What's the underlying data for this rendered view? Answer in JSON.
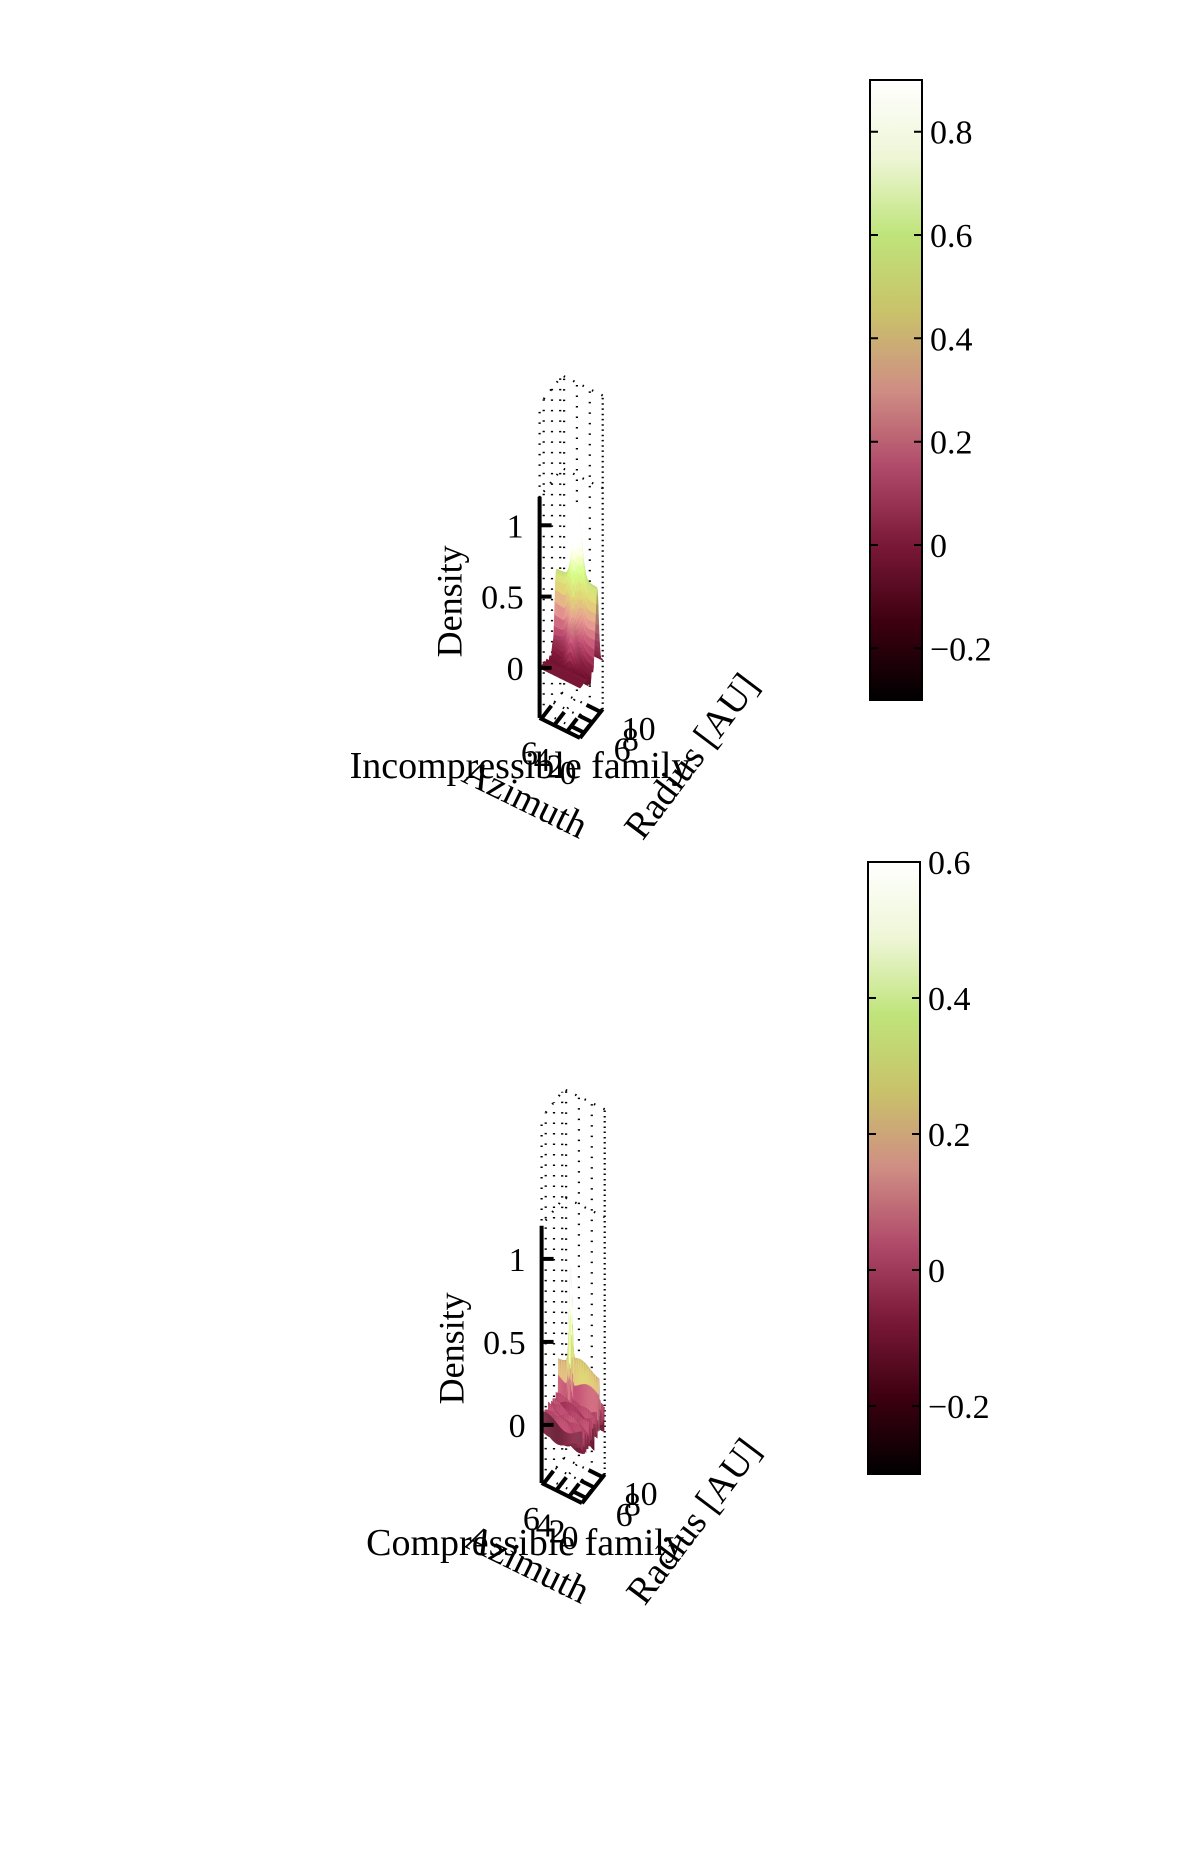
{
  "chart_data": [
    {
      "type": "surface",
      "caption": "Incompressible family",
      "zlabel": "Density",
      "xlabel": "Azimuth",
      "ylabel": "Radius [AU]",
      "xlim": [
        0,
        6.28
      ],
      "ylim": [
        5,
        10.5
      ],
      "zlim": [
        -0.35,
        1.2
      ],
      "xticks": [
        0,
        2,
        4,
        6
      ],
      "xtick_labels": [
        "0",
        "2",
        "4",
        "6"
      ],
      "yticks": [
        6,
        8,
        10
      ],
      "ytick_labels": [
        "6",
        "8",
        "10"
      ],
      "zticks": [
        0,
        0.5,
        1
      ],
      "ztick_labels": [
        "0",
        "0.5",
        "1"
      ],
      "grid": true,
      "colormap": [
        "#000000",
        "#3d0010",
        "#7a1838",
        "#b04a6a",
        "#cf8e84",
        "#c9c26a",
        "#bfe47a",
        "#eef6d6",
        "#ffffff"
      ],
      "surface": {
        "description": "ring ridge across azimuth with a single vortex bump",
        "ring_radius": 9.1,
        "ring_height": 0.55,
        "vortex_azimuth": 3.0,
        "vortex_peak": 0.88
      },
      "colorbar": {
        "clim": [
          -0.3,
          0.9
        ],
        "ticks": [
          -0.2,
          0,
          0.2,
          0.4,
          0.6,
          0.8
        ],
        "tick_labels": [
          "−0.2",
          "0",
          "0.2",
          "0.4",
          "0.6",
          "0.8"
        ]
      }
    },
    {
      "type": "surface",
      "caption": "Compressible family",
      "zlabel": "Density",
      "xlabel": "Azimuth",
      "ylabel": "Radius [AU]",
      "xlim": [
        0,
        6.28
      ],
      "ylim": [
        5,
        10.5
      ],
      "zlim": [
        -0.35,
        1.2
      ],
      "xticks": [
        0,
        2,
        4,
        6
      ],
      "xtick_labels": [
        "0",
        "2",
        "4",
        "6"
      ],
      "yticks": [
        6,
        8,
        10
      ],
      "ytick_labels": [
        "6",
        "8",
        "10"
      ],
      "zticks": [
        0,
        0.5,
        1
      ],
      "ztick_labels": [
        "0",
        "0.5",
        "1"
      ],
      "grid": true,
      "colormap": [
        "#000000",
        "#3d0010",
        "#7a1838",
        "#b04a6a",
        "#cf8e84",
        "#c9c26a",
        "#bfe47a",
        "#eef6d6",
        "#ffffff"
      ],
      "surface": {
        "description": "two narrow spiked rings with a sharp vortex peak and striated background",
        "ring_radius": 9.1,
        "ring_height": 0.3,
        "vortex_azimuth": 4.4,
        "vortex_peak": 0.58
      },
      "colorbar": {
        "clim": [
          -0.3,
          0.6
        ],
        "ticks": [
          -0.2,
          0,
          0.2,
          0.4,
          0.6
        ],
        "tick_labels": [
          "−0.2",
          "0",
          "0.2",
          "0.4",
          "0.6"
        ]
      }
    }
  ]
}
